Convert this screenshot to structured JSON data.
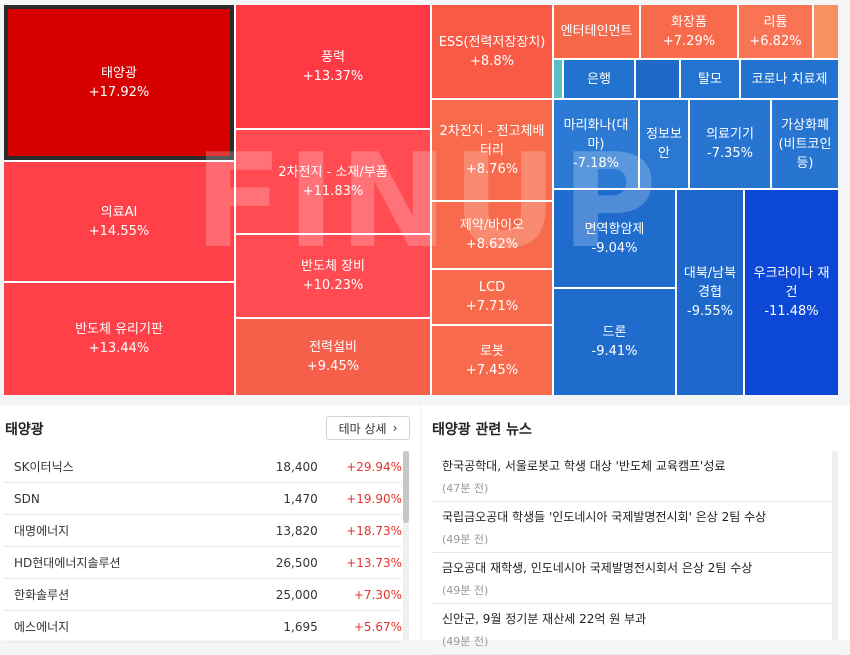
{
  "watermark": "FINUP",
  "treemap": {
    "cells": [
      {
        "name": "태양광",
        "change": "+17.92%"
      },
      {
        "name": "풍력",
        "change": "+13.37%"
      },
      {
        "name": "ESS(전력저장장치)",
        "change": "+8.8%"
      },
      {
        "name": "엔터테인먼트",
        "change": ""
      },
      {
        "name": "화장품",
        "change": "+7.29%"
      },
      {
        "name": "리튬",
        "change": "+6.82%"
      },
      {
        "name": "",
        "change": ""
      },
      {
        "name": "",
        "change": ""
      },
      {
        "name": "의료AI",
        "change": "+14.55%"
      },
      {
        "name": "2차전지 - 소재/부품",
        "change": "+11.83%"
      },
      {
        "name": "2차전지 - 전고체배터리",
        "change": "+8.76%"
      },
      {
        "name": "",
        "change": ""
      },
      {
        "name": "은행",
        "change": ""
      },
      {
        "name": "",
        "change": ""
      },
      {
        "name": "탈모",
        "change": ""
      },
      {
        "name": "코로나 치료제",
        "change": ""
      },
      {
        "name": "마리화나(대마)",
        "change": "-7.18%"
      },
      {
        "name": "정보보안",
        "change": ""
      },
      {
        "name": "의료기기",
        "change": "-7.35%"
      },
      {
        "name": "가상화폐(비트코인 등)",
        "change": ""
      },
      {
        "name": "반도체 장비",
        "change": "+10.23%"
      },
      {
        "name": "제약/바이오",
        "change": "+8.62%"
      },
      {
        "name": "면역항암제",
        "change": "-9.04%"
      },
      {
        "name": "대북/남북경협",
        "change": "-9.55%"
      },
      {
        "name": "우크라이나 재건",
        "change": "-11.48%"
      },
      {
        "name": "반도체 유리기판",
        "change": "+13.44%"
      },
      {
        "name": "LCD",
        "change": "+7.71%"
      },
      {
        "name": "전력설비",
        "change": "+9.45%"
      },
      {
        "name": "로봇",
        "change": "+7.45%"
      },
      {
        "name": "드론",
        "change": "-9.41%"
      }
    ]
  },
  "theme_panel": {
    "title": "태양광",
    "detail_button": "테마 상세",
    "detail_chevron": "›",
    "stocks": [
      {
        "name": "SK이터닉스",
        "price": "18,400",
        "change": "+29.94%"
      },
      {
        "name": "SDN",
        "price": "1,470",
        "change": "+19.90%"
      },
      {
        "name": "대명에너지",
        "price": "13,820",
        "change": "+18.73%"
      },
      {
        "name": "HD현대에너지솔루션",
        "price": "26,500",
        "change": "+13.73%"
      },
      {
        "name": "한화솔루션",
        "price": "25,000",
        "change": "+7.30%"
      },
      {
        "name": "에스에너지",
        "price": "1,695",
        "change": "+5.67%"
      }
    ]
  },
  "news_panel": {
    "title": "태양광 관련 뉴스",
    "items": [
      {
        "title": "한국공학대, 서울로봇고 학생 대상 '반도체 교육캠프'성료",
        "time": "(47분 전)"
      },
      {
        "title": "국립금오공대 학생들 '인도네시아 국제발명전시회' 은상 2팀 수상",
        "time": "(49분 전)"
      },
      {
        "title": "금오공대 재학생, 인도네시아 국제발명전시회서 은상 2팀 수상",
        "time": "(49분 전)"
      },
      {
        "title": "신안군, 9월 정기분 재산세 22억 원 부과",
        "time": "(49분 전)"
      }
    ]
  }
}
